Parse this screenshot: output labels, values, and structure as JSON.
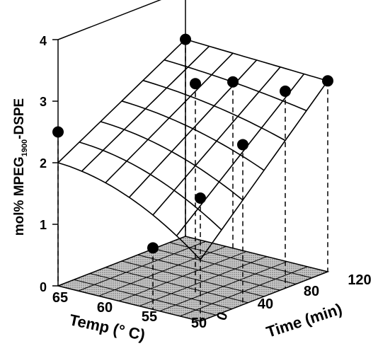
{
  "chart_data": {
    "type": "surface3d",
    "ylabel": "mol% MPEG",
    "ylabel_sub": "1900",
    "ylabel_suffix": "-DSPE",
    "xlabel": "Temp (° C)",
    "zlabel": "Time (min)",
    "yticks": [
      "0",
      "1",
      "2",
      "3",
      "4"
    ],
    "xticks": [
      "65",
      "60",
      "55",
      "50"
    ],
    "zticks": [
      "0",
      "40",
      "80",
      "120"
    ],
    "ylim": [
      0,
      4
    ],
    "temp_range": [
      50,
      65
    ],
    "time_range": [
      0,
      120
    ],
    "grid_floor": true,
    "points": [
      {
        "temp": 65,
        "time": 0,
        "value": 2.5
      },
      {
        "temp": 55,
        "time": 0,
        "value": 1.0
      },
      {
        "temp": 50,
        "time": 0,
        "value": 2.0
      },
      {
        "temp": 55,
        "time": 40,
        "value": 3.4
      },
      {
        "temp": 50,
        "time": 40,
        "value": 2.6
      },
      {
        "temp": 50,
        "time": 80,
        "value": 3.2
      },
      {
        "temp": 50,
        "time": 120,
        "value": 3.1
      },
      {
        "temp": 60,
        "time": 120,
        "value": 2.7
      },
      {
        "temp": 65,
        "time": 120,
        "value": 3.2
      }
    ]
  }
}
